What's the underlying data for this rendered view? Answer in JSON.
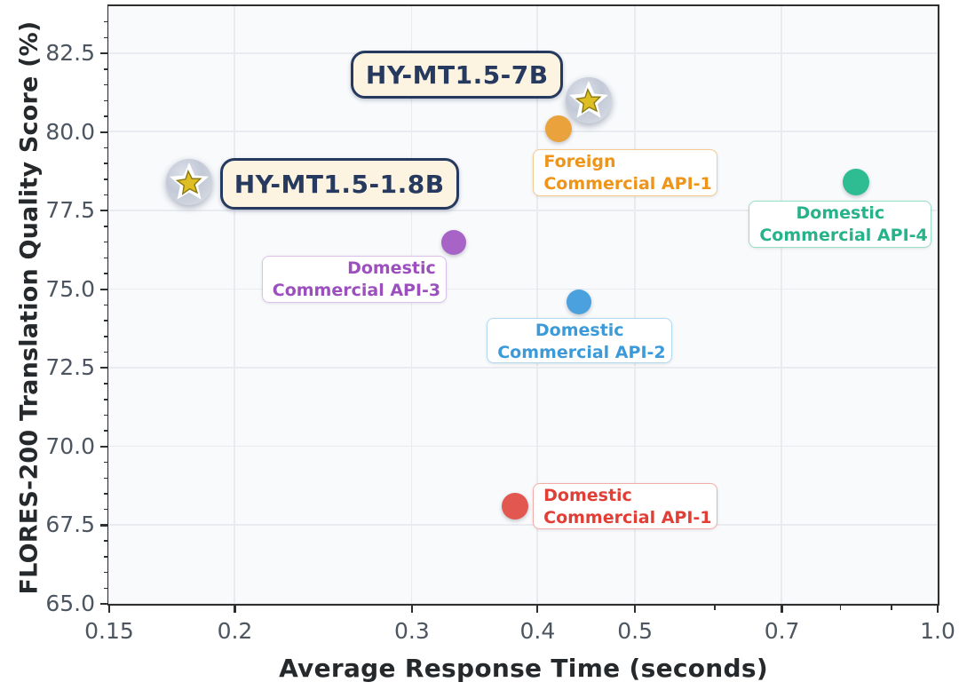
{
  "chart_data": {
    "type": "scatter",
    "xlabel": "Average Response Time (seconds)",
    "ylabel": "FLORES-200 Translation Quality Score (%)",
    "x_scale": "log",
    "xlim": [
      0.15,
      1.0
    ],
    "ylim": [
      65.0,
      84.0
    ],
    "grid": true,
    "legend": "none",
    "x_ticks": [
      {
        "v": 0.15,
        "label": "0.15"
      },
      {
        "v": 0.2,
        "label": "0.2"
      },
      {
        "v": 0.3,
        "label": "0.3"
      },
      {
        "v": 0.4,
        "label": "0.4"
      },
      {
        "v": 0.5,
        "label": "0.5"
      },
      {
        "v": 0.7,
        "label": "0.7"
      },
      {
        "v": 1.0,
        "label": "1.0"
      }
    ],
    "x_minor_ticks": [
      0.6,
      0.8,
      0.9
    ],
    "y_ticks": [
      {
        "v": 65.0,
        "label": "65.0"
      },
      {
        "v": 67.5,
        "label": "67.5"
      },
      {
        "v": 70.0,
        "label": "70.0"
      },
      {
        "v": 72.5,
        "label": "72.5"
      },
      {
        "v": 75.0,
        "label": "75.0"
      },
      {
        "v": 77.5,
        "label": "77.5"
      },
      {
        "v": 80.0,
        "label": "80.0"
      },
      {
        "v": 82.5,
        "label": "82.5"
      }
    ],
    "y_minor_step": 0.5,
    "points": [
      {
        "id": "hy-mt1-5-7b",
        "label_lines": [
          "HY-MT1.5-7B"
        ],
        "x": 0.45,
        "y": 81.0,
        "marker": "star-badge",
        "r": 26,
        "style": "hero",
        "label_offset": [
          -268,
          -56
        ],
        "label_size": [
          239,
          54
        ]
      },
      {
        "id": "hy-mt1-5-1-8b",
        "label_lines": [
          "HY-MT1.5-1.8B"
        ],
        "x": 0.18,
        "y": 78.4,
        "marker": "star-badge",
        "r": 26,
        "style": "hero",
        "label_offset": [
          35,
          -27
        ],
        "label_size": [
          269,
          58
        ]
      },
      {
        "id": "foreign-commercial-api-1",
        "label_lines": [
          "Foreign",
          "Commercial API-1"
        ],
        "x": 0.42,
        "y": 80.1,
        "marker": "dot",
        "r": 15,
        "style": "api",
        "align": "left",
        "colors": {
          "dot": "#EAA23C",
          "text": "#EE9418",
          "border": "#F4CA8E"
        },
        "label_offset": [
          -29,
          23
        ],
        "label_size": [
          208,
          53
        ]
      },
      {
        "id": "domestic-commercial-api-4",
        "label_lines": [
          "Domestic",
          "Commercial API-4"
        ],
        "x": 0.83,
        "y": 78.4,
        "marker": "dot",
        "r": 15,
        "style": "api",
        "align": "center",
        "colors": {
          "dot": "#2EBD92",
          "text": "#27B38A",
          "border": "#96DFC8"
        },
        "label_offset": [
          -121,
          21
        ],
        "label_size": [
          206,
          53
        ]
      },
      {
        "id": "domestic-commercial-api-3",
        "label_lines": [
          "Domestic",
          "Commercial API-3"
        ],
        "x": 0.33,
        "y": 76.5,
        "marker": "dot",
        "r": 14,
        "style": "api",
        "align": "right",
        "colors": {
          "dot": "#A763C6",
          "text": "#9C50BE",
          "border": "#DCC0EA"
        },
        "label_offset": [
          -216,
          15
        ],
        "label_size": [
          208,
          53
        ]
      },
      {
        "id": "domestic-commercial-api-2",
        "label_lines": [
          "Domestic",
          "Commercial API-2"
        ],
        "x": 0.44,
        "y": 74.6,
        "marker": "dot",
        "r": 14,
        "style": "api",
        "align": "center",
        "colors": {
          "dot": "#4AA1DE",
          "text": "#3D9AD9",
          "border": "#B2D8F2"
        },
        "label_offset": [
          -104,
          18
        ],
        "label_size": [
          209,
          51
        ]
      },
      {
        "id": "domestic-commercial-api-1",
        "label_lines": [
          "Domestic",
          "Commercial API-1"
        ],
        "x": 0.38,
        "y": 68.1,
        "marker": "dot",
        "r": 15,
        "style": "api",
        "align": "left",
        "colors": {
          "dot": "#E25750",
          "text": "#E23E36",
          "border": "#F3ACA8"
        },
        "label_offset": [
          20,
          -26
        ],
        "label_size": [
          208,
          52
        ]
      }
    ],
    "style_colors": {
      "plot_bg": "#f8fafc",
      "figure_bg": "#ffffff",
      "frame": "#2d2f31",
      "grid": "#e9ebf0",
      "tick_label": "#4c5560",
      "axis_title": "#26292c",
      "hero_box_bg": "#fcf3e1",
      "hero_box_border": "#26395e",
      "badge_silver": "#c3cad7",
      "badge_star_gold": "#ddbe23",
      "badge_star_gold_stroke": "#8a7812",
      "badge_star_white": "#ffffff"
    }
  }
}
